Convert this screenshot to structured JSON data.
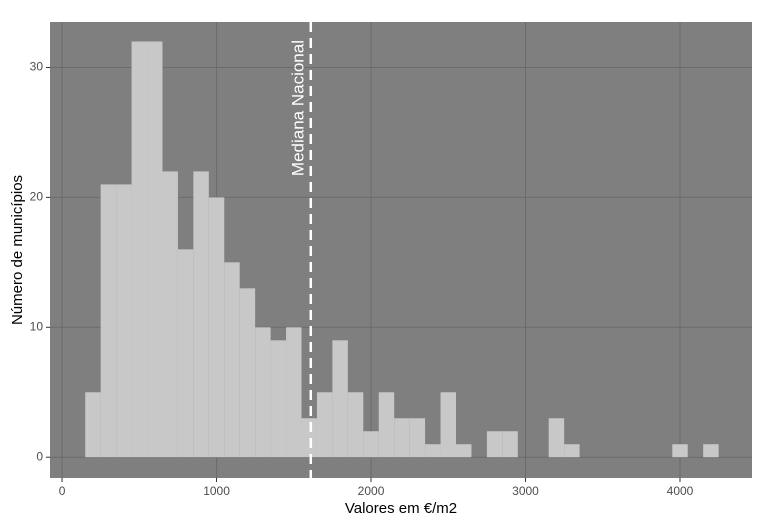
{
  "chart_data": {
    "type": "histogram",
    "x_label": "Valores em €/m2",
    "y_label": "Número de municípios",
    "bins": [
      150,
      250,
      350,
      450,
      550,
      650,
      750,
      850,
      950,
      1050,
      1150,
      1250,
      1350,
      1450,
      1550,
      1650,
      1750,
      1850,
      1950,
      2050,
      2150,
      2250,
      2350,
      2450,
      2550,
      2650,
      2750,
      2850,
      2950,
      3050,
      3150,
      3250,
      3350,
      3450,
      3550,
      3650,
      3750,
      3850,
      3950,
      4050,
      4150,
      4250
    ],
    "counts": [
      5,
      21,
      21,
      32,
      32,
      22,
      16,
      22,
      20,
      15,
      13,
      10,
      9,
      10,
      3,
      5,
      9,
      5,
      2,
      5,
      3,
      3,
      1,
      5,
      1,
      0,
      2,
      2,
      0,
      0,
      3,
      1,
      0,
      0,
      0,
      0,
      0,
      0,
      1,
      0,
      1
    ],
    "color": "#c8c8c8",
    "panel_color": "#7f7f7f",
    "xlim": [
      -78,
      4466
    ],
    "ylim": [
      -1.6,
      33.5
    ],
    "xticks": [
      0,
      1000,
      2000,
      3000,
      4000
    ],
    "yticks": [
      0,
      10,
      20,
      30
    ],
    "grid": true,
    "annotations": [
      {
        "text": "Mediana Nacional",
        "x": 1610,
        "color": "#ffffff"
      }
    ]
  }
}
